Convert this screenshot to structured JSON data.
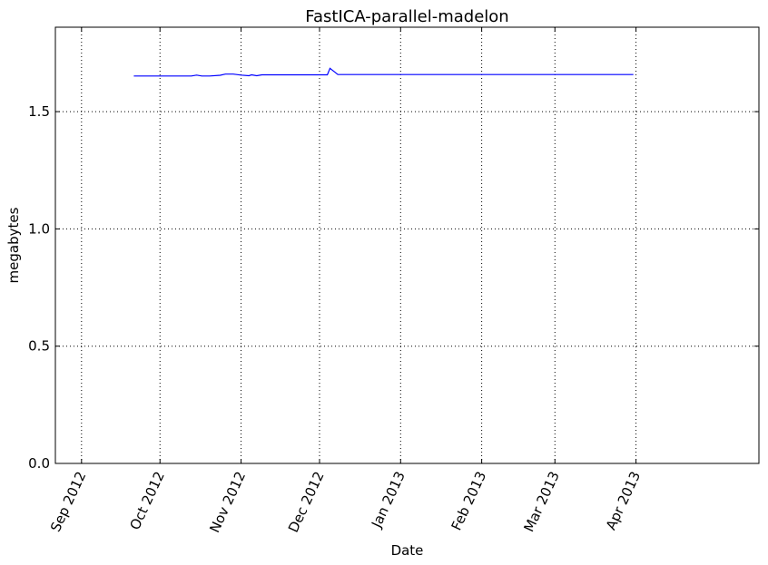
{
  "chart_data": {
    "type": "line",
    "title": "FastICA-parallel-madelon",
    "xlabel": "Date",
    "ylabel": "megabytes",
    "grid": true,
    "legend": "none",
    "xlim": [
      "2012-08-22",
      "2013-05-18"
    ],
    "ylim": [
      0,
      1.86
    ],
    "x_ticks": [
      {
        "date": "2012-09-01",
        "label": "Sep 2012"
      },
      {
        "date": "2012-10-01",
        "label": "Oct 2012"
      },
      {
        "date": "2012-11-01",
        "label": "Nov 2012"
      },
      {
        "date": "2012-12-01",
        "label": "Dec 2012"
      },
      {
        "date": "2013-01-01",
        "label": "Jan 2013"
      },
      {
        "date": "2013-02-01",
        "label": "Feb 2013"
      },
      {
        "date": "2013-03-01",
        "label": "Mar 2013"
      },
      {
        "date": "2013-04-01",
        "label": "Apr 2013"
      }
    ],
    "y_ticks": [
      {
        "value": 0,
        "label": "0.0"
      },
      {
        "value": 0.5,
        "label": "0.5"
      },
      {
        "value": 1.0,
        "label": "1.0"
      },
      {
        "value": 1.5,
        "label": "1.5"
      }
    ],
    "series": [
      {
        "color": "#0000ff",
        "points": [
          {
            "x": "2012-09-21",
            "y": 1.652
          },
          {
            "x": "2012-10-13",
            "y": 1.652
          },
          {
            "x": "2012-10-15",
            "y": 1.656
          },
          {
            "x": "2012-10-17",
            "y": 1.652
          },
          {
            "x": "2012-10-20",
            "y": 1.652
          },
          {
            "x": "2012-10-24",
            "y": 1.655
          },
          {
            "x": "2012-10-26",
            "y": 1.66
          },
          {
            "x": "2012-10-29",
            "y": 1.66
          },
          {
            "x": "2012-11-01",
            "y": 1.656
          },
          {
            "x": "2012-11-04",
            "y": 1.653
          },
          {
            "x": "2012-11-05",
            "y": 1.657
          },
          {
            "x": "2012-11-07",
            "y": 1.653
          },
          {
            "x": "2012-11-09",
            "y": 1.657
          },
          {
            "x": "2012-12-04",
            "y": 1.657
          },
          {
            "x": "2012-12-05",
            "y": 1.685
          },
          {
            "x": "2012-12-08",
            "y": 1.658
          },
          {
            "x": "2013-03-31",
            "y": 1.658
          }
        ]
      }
    ]
  }
}
